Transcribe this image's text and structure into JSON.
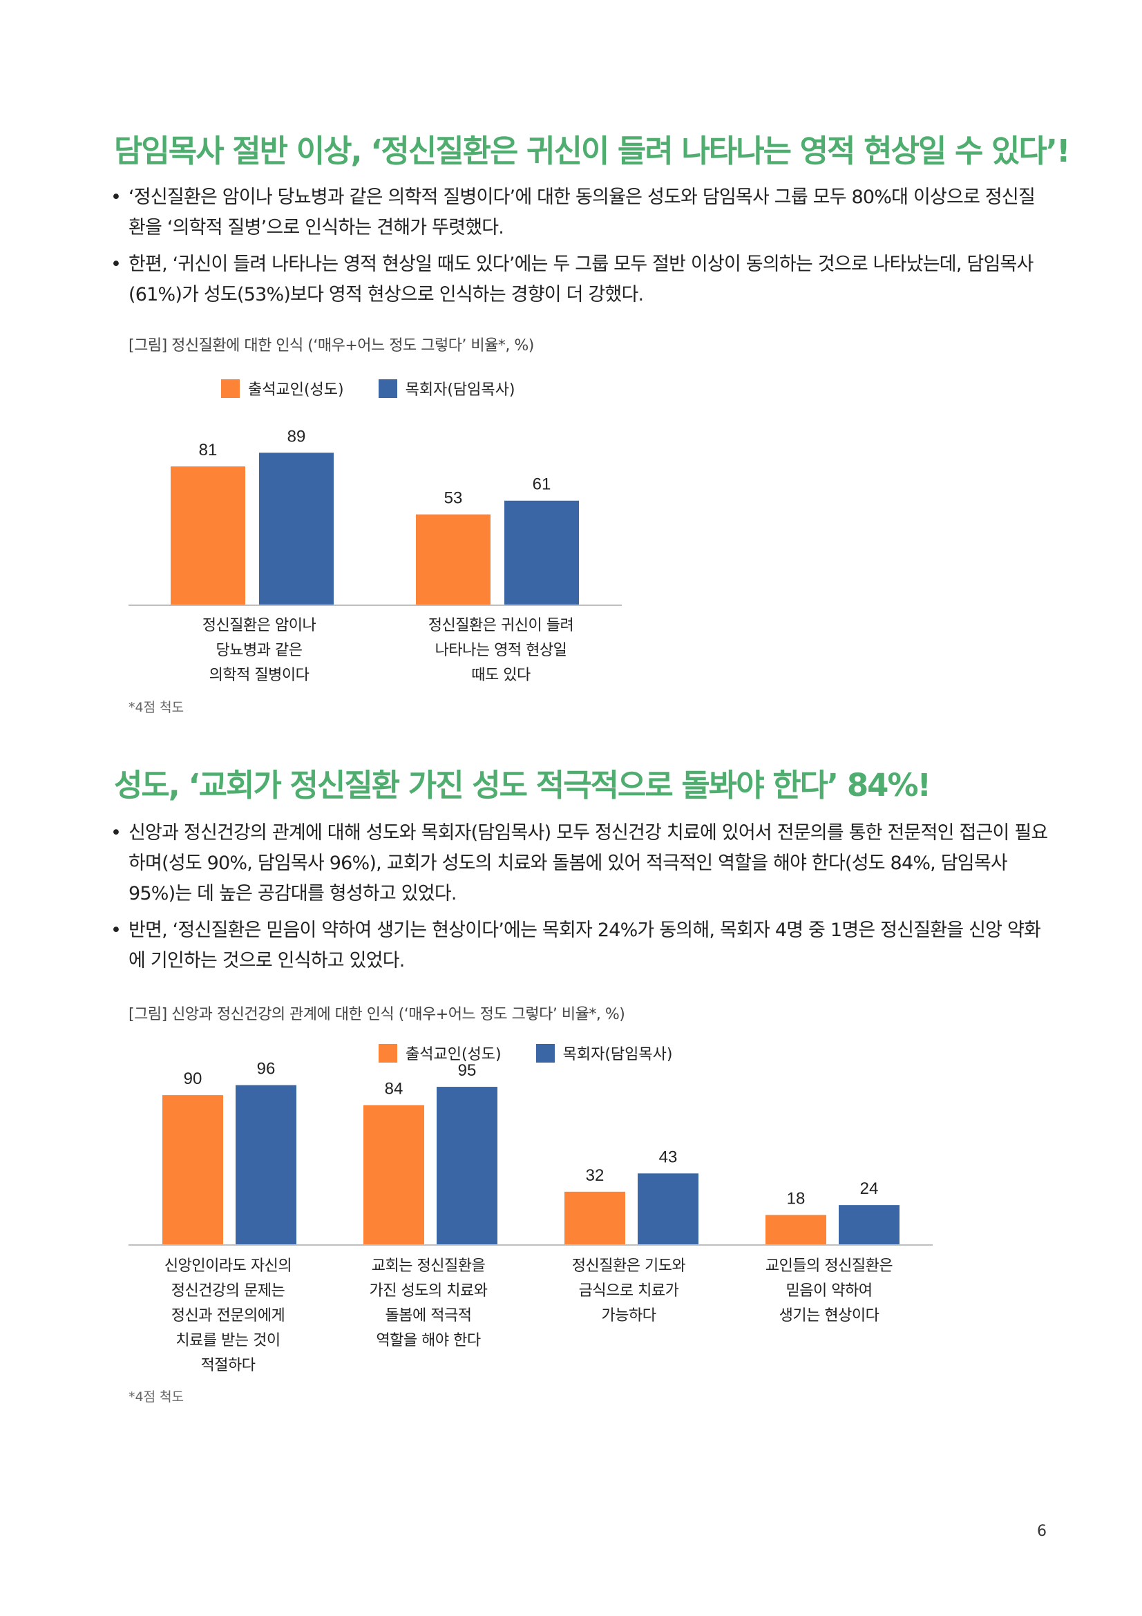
{
  "section1": {
    "title": "담임목사 절반 이상, ‘정신질환은 귀신이 들려 나타나는 영적 현상일 수 있다’!",
    "bullets": [
      "‘정신질환은 암이나 당뇨병과 같은 의학적 질병이다’에 대한 동의율은 성도와 담임목사 그룹 모두 80%대 이상으로 정신질환을 ‘의학적 질병’으로 인식하는 견해가 뚜렷했다.",
      "한편, ‘귀신이 들려 나타나는 영적 현상일 때도 있다’에는 두 그룹 모두 절반 이상이 동의하는 것으로 나타났는데, 담임목사(61%)가 성도(53%)보다 영적 현상으로 인식하는 경향이 더 강했다."
    ],
    "caption": "[그림] 정신질환에 대한 인식 (‘매우+어느 정도 그렇다’ 비율*, %)",
    "note": "*4점 척도"
  },
  "section2": {
    "title": "성도, ‘교회가 정신질환 가진 성도 적극적으로 돌봐야 한다’ 84%!",
    "bullets": [
      "신앙과 정신건강의 관계에 대해 성도와 목회자(담임목사) 모두 정신건강 치료에 있어서 전문의를 통한 전문적인 접근이 필요하며(성도 90%, 담임목사 96%), 교회가 성도의 치료와 돌봄에 있어 적극적인 역할을 해야 한다(성도 84%, 담임목사 95%)는 데 높은 공감대를 형성하고 있었다.",
      "반면, ‘정신질환은 믿음이 약하여 생기는 현상이다’에는 목회자 24%가 동의해, 목회자 4명 중 1명은 정신질환을 신앙 약화에 기인하는 것으로 인식하고 있었다."
    ],
    "caption": "[그림] 신앙과 정신건강의 관계에 대한 인식 (‘매우+어느 정도 그렇다’ 비율*, %)",
    "note": "*4점 척도"
  },
  "legend": {
    "series1": "출석교인(성도)",
    "series2": "목회자(담임목사)"
  },
  "colors": {
    "series1": "#fd8336",
    "series2": "#3a66a5",
    "title": "#4fae6f",
    "axis": "#bfbfbf"
  },
  "page_number": "6",
  "chart_data": [
    {
      "type": "bar",
      "title": "정신질환에 대한 인식",
      "categories": [
        "정신질환은 암이나\n당뇨병과 같은\n의학적 질병이다",
        "정신질환은 귀신이 들려\n나타나는 영적 현상일\n때도 있다"
      ],
      "series": [
        {
          "name": "출석교인(성도)",
          "values": [
            81,
            53
          ]
        },
        {
          "name": "목회자(담임목사)",
          "values": [
            89,
            61
          ]
        }
      ],
      "ylim": [
        0,
        100
      ]
    },
    {
      "type": "bar",
      "title": "신앙과 정신건강의 관계에 대한 인식",
      "categories": [
        "신앙인이라도 자신의\n정신건강의 문제는\n정신과 전문의에게\n치료를 받는 것이\n적절하다",
        "교회는 정신질환을\n가진 성도의 치료와\n돌봄에 적극적\n역할을 해야 한다",
        "정신질환은 기도와\n금식으로 치료가\n가능하다",
        "교인들의 정신질환은\n믿음이 약하여\n생기는 현상이다"
      ],
      "series": [
        {
          "name": "출석교인(성도)",
          "values": [
            90,
            84,
            32,
            18
          ]
        },
        {
          "name": "목회자(담임목사)",
          "values": [
            96,
            95,
            43,
            24
          ]
        }
      ],
      "ylim": [
        0,
        100
      ]
    }
  ]
}
